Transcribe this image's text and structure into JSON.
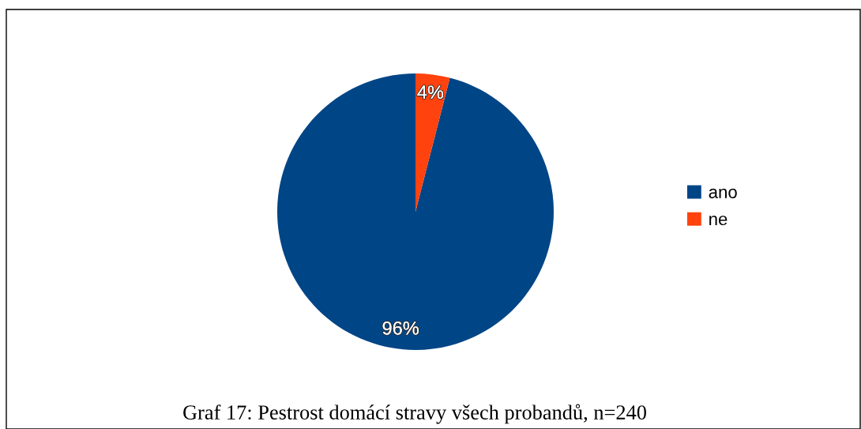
{
  "chart_data": {
    "type": "pie",
    "categories": [
      "ano",
      "ne"
    ],
    "values": [
      96,
      4
    ],
    "colors": [
      "#004586",
      "#ff420e"
    ],
    "value_labels": [
      "96%",
      "4%"
    ],
    "legend": "right",
    "annotations": [
      "Graf 17: Pestrost domácí stravy všech probandů, n=240"
    ]
  }
}
